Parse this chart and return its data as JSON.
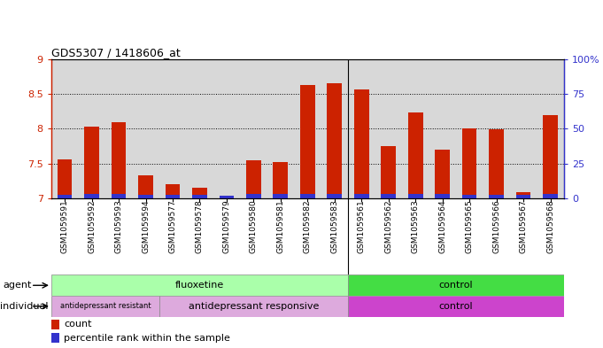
{
  "title": "GDS5307 / 1418606_at",
  "samples": [
    "GSM1059591",
    "GSM1059592",
    "GSM1059593",
    "GSM1059594",
    "GSM1059577",
    "GSM1059578",
    "GSM1059579",
    "GSM1059580",
    "GSM1059581",
    "GSM1059582",
    "GSM1059583",
    "GSM1059561",
    "GSM1059562",
    "GSM1059563",
    "GSM1059564",
    "GSM1059565",
    "GSM1059566",
    "GSM1059567",
    "GSM1059568"
  ],
  "red_values": [
    7.56,
    8.03,
    8.1,
    7.33,
    7.2,
    7.15,
    7.04,
    7.55,
    7.52,
    8.63,
    8.65,
    8.56,
    7.75,
    8.23,
    7.7,
    8.0,
    7.99,
    7.09,
    8.2
  ],
  "blue_values": [
    0.055,
    0.065,
    0.065,
    0.055,
    0.055,
    0.055,
    0.035,
    0.065,
    0.065,
    0.065,
    0.065,
    0.065,
    0.065,
    0.065,
    0.065,
    0.055,
    0.055,
    0.045,
    0.065
  ],
  "ymin": 7.0,
  "ymax": 9.0,
  "yticks": [
    7.0,
    7.5,
    8.0,
    8.5,
    9.0
  ],
  "yticklabels_left": [
    "7",
    "7.5",
    "8",
    "8.5",
    "9"
  ],
  "yticklabels_right": [
    "0",
    "25",
    "50",
    "75",
    "100%"
  ],
  "right_yticks": [
    0.0,
    0.25,
    0.5,
    0.75,
    1.0
  ],
  "grid_yticks": [
    7.5,
    8.0,
    8.5
  ],
  "bar_color_red": "#cc2200",
  "bar_color_blue": "#3333cc",
  "bg_color": "#d8d8d8",
  "agent_fluoxetine_label": "fluoxetine",
  "agent_control_label": "control",
  "agent_fluoxetine_color": "#aaffaa",
  "agent_control_color": "#44dd44",
  "ind_resistant_label": "antidepressant resistant",
  "ind_responsive_label": "antidepressant responsive",
  "ind_control_label": "control",
  "ind_resistant_color": "#ddaadd",
  "ind_responsive_color": "#ddaadd",
  "ind_control_color": "#cc44cc",
  "legend_count_label": "count",
  "legend_percentile_label": "percentile rank within the sample",
  "bar_width": 0.55,
  "flu_count": 11,
  "ctrl_count": 8,
  "resistant_count": 4,
  "responsive_count": 7
}
